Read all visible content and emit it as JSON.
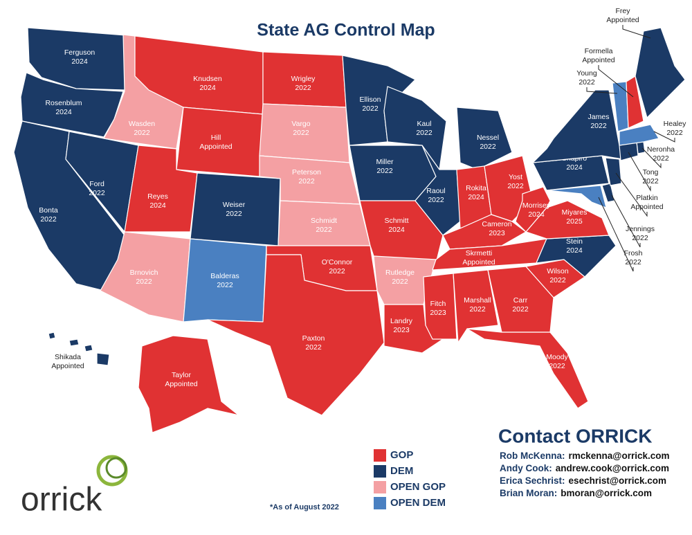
{
  "title": "State AG Control Map",
  "states": [
    {
      "ag": "Ferguson",
      "term": "2024",
      "color": "#1b3a66"
    },
    {
      "ag": "Rosenblum",
      "term": "2024",
      "color": "#1b3a66"
    },
    {
      "ag": "Bonta",
      "term": "2022",
      "color": "#1b3a66"
    },
    {
      "ag": "Ford",
      "term": "2022",
      "color": "#1b3a66"
    },
    {
      "ag": "Wasden",
      "term": "2022",
      "color": "#f4a0a3"
    },
    {
      "ag": "Knudsen",
      "term": "2024",
      "color": "#e03233"
    },
    {
      "ag": "Hill",
      "term": "Appointed",
      "color": "#e03233"
    },
    {
      "ag": "Reyes",
      "term": "2024",
      "color": "#e03233"
    },
    {
      "ag": "Weiser",
      "term": "2022",
      "color": "#1b3a66"
    },
    {
      "ag": "Brnovich",
      "term": "2022",
      "color": "#f4a0a3"
    },
    {
      "ag": "Balderas",
      "term": "2022",
      "color": "#4a80c1"
    },
    {
      "ag": "Wrigley",
      "term": "2022",
      "color": "#e03233"
    },
    {
      "ag": "Vargo",
      "term": "2022",
      "color": "#f4a0a3"
    },
    {
      "ag": "Peterson",
      "term": "2022",
      "color": "#f4a0a3"
    },
    {
      "ag": "Schmidt",
      "term": "2022",
      "color": "#f4a0a3"
    },
    {
      "ag": "O'Connor",
      "term": "2022",
      "color": "#e03233"
    },
    {
      "ag": "Paxton",
      "term": "2022",
      "color": "#e03233"
    },
    {
      "ag": "Ellison",
      "term": "2022",
      "color": "#1b3a66"
    },
    {
      "ag": "Miller",
      "term": "2022",
      "color": "#1b3a66"
    },
    {
      "ag": "Schmitt",
      "term": "2024",
      "color": "#e03233"
    },
    {
      "ag": "Rutledge",
      "term": "2022",
      "color": "#f4a0a3"
    },
    {
      "ag": "Landry",
      "term": "2023",
      "color": "#e03233"
    },
    {
      "ag": "Kaul",
      "term": "2022",
      "color": "#1b3a66"
    },
    {
      "ag": "Raoul",
      "term": "2022",
      "color": "#1b3a66"
    },
    {
      "ag": "Nessel",
      "term": "2022",
      "color": "#1b3a66"
    },
    {
      "ag": "Rokita",
      "term": "2024",
      "color": "#e03233"
    },
    {
      "ag": "Yost",
      "term": "2022",
      "color": "#e03233"
    },
    {
      "ag": "Cameron",
      "term": "2023",
      "color": "#e03233"
    },
    {
      "ag": "Skrmetti",
      "term": "Appointed",
      "color": "#e03233"
    },
    {
      "ag": "Fitch",
      "term": "2023",
      "color": "#e03233"
    },
    {
      "ag": "Marshall",
      "term": "2022",
      "color": "#e03233"
    },
    {
      "ag": "Carr",
      "term": "2022",
      "color": "#e03233"
    },
    {
      "ag": "Moody",
      "term": "2022",
      "color": "#e03233"
    },
    {
      "ag": "Wilson",
      "term": "2022",
      "color": "#e03233"
    },
    {
      "ag": "Stein",
      "term": "2024",
      "color": "#1b3a66"
    },
    {
      "ag": "Miyares",
      "term": "2025",
      "color": "#e03233"
    },
    {
      "ag": "Morrisey",
      "term": "2024",
      "color": "#e03233"
    },
    {
      "ag": "Shapiro",
      "term": "2024",
      "color": "#1b3a66"
    },
    {
      "ag": "James",
      "term": "2022",
      "color": "#1b3a66"
    },
    {
      "ag": "Frosh",
      "term": "2022",
      "color": "#4a80c1"
    },
    {
      "ag": "Jennings",
      "term": "2022",
      "color": "#1b3a66"
    },
    {
      "ag": "Platkin",
      "term": "Appointed",
      "color": "#1b3a66"
    },
    {
      "ag": "Tong",
      "term": "2022",
      "color": "#1b3a66"
    },
    {
      "ag": "Neronha",
      "term": "2022",
      "color": "#1b3a66"
    },
    {
      "ag": "Healey",
      "term": "2022",
      "color": "#4a80c1"
    },
    {
      "ag": "Young",
      "term": "2022",
      "color": "#4a80c1"
    },
    {
      "ag": "Formella",
      "term": "Appointed",
      "color": "#e03233"
    },
    {
      "ag": "Frey",
      "term": "Appointed",
      "color": "#1b3a66"
    },
    {
      "ag": "Taylor",
      "term": "Appointed",
      "color": "#e03233"
    },
    {
      "ag": "Shikada",
      "term": "Appointed",
      "color": "#1b3a66"
    }
  ],
  "legend": [
    {
      "label": "GOP",
      "color": "#e03233"
    },
    {
      "label": "DEM",
      "color": "#1b3a66"
    },
    {
      "label": "OPEN GOP",
      "color": "#f4a0a3"
    },
    {
      "label": "OPEN DEM",
      "color": "#4a80c1"
    }
  ],
  "footnote": "*As of August 2022",
  "contact": {
    "title": "Contact ORRICK",
    "people": [
      {
        "name": "Rob McKenna:",
        "email": "rmckenna@orrick.com"
      },
      {
        "name": "Andy Cook:",
        "email": "andrew.cook@orrick.com"
      },
      {
        "name": "Erica Sechrist:",
        "email": "esechrist@orrick.com"
      },
      {
        "name": "Brian Moran:",
        "email": "bmoran@orrick.com"
      }
    ]
  },
  "logo": "orrick"
}
